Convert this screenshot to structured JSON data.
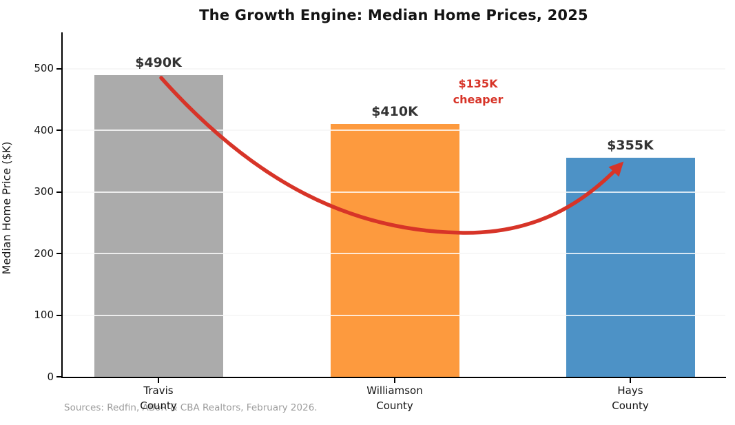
{
  "source_note": "Sources: Redfin, ABoR & CBA Realtors, February 2026.",
  "chart_data": {
    "type": "bar",
    "title": "The Growth Engine: Median Home Prices, 2025",
    "xlabel": "",
    "ylabel": "Median Home Price ($K)",
    "categories": [
      "Travis County",
      "Williamson County",
      "Hays County"
    ],
    "category_lines": [
      [
        "Travis",
        "County"
      ],
      [
        "Williamson",
        "County"
      ],
      [
        "Hays",
        "County"
      ]
    ],
    "values": [
      490,
      410,
      355
    ],
    "bar_labels": [
      "$490K",
      "$410K",
      "$355K"
    ],
    "bar_colors": [
      "#ababab",
      "#fd9a3e",
      "#4d92c6"
    ],
    "yticks": [
      0,
      100,
      200,
      300,
      400,
      500
    ],
    "ylim": [
      0,
      559
    ],
    "grid": true,
    "legend": false,
    "annotation": {
      "line1": "$135K",
      "line2": "cheaper",
      "color": "#d73428",
      "arrow": "curved arrow from top of Travis bar ($490K) to top of Hays bar ($355K)"
    }
  }
}
